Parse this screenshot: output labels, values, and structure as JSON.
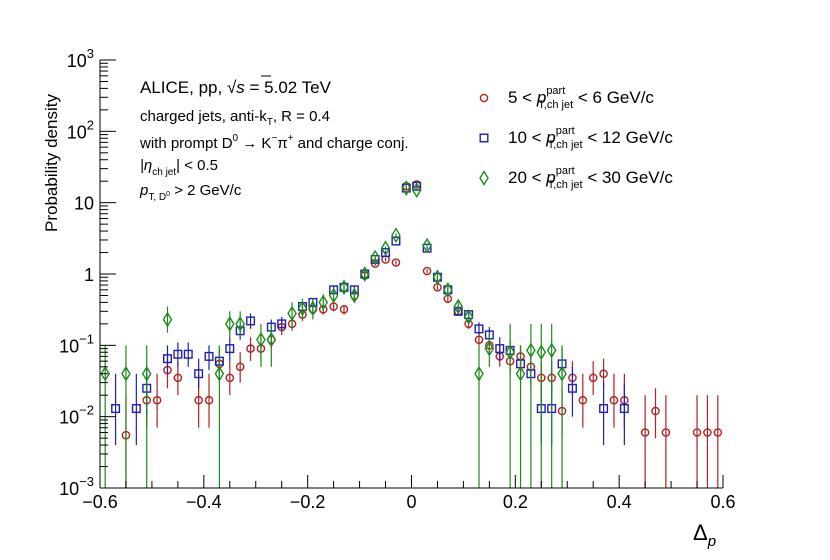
{
  "chart_data": {
    "type": "scatter",
    "title": "",
    "xlabel_main": "Δ",
    "xlabel_sub": "p",
    "ylabel": "Probability density",
    "xlim": [
      -0.6,
      0.6
    ],
    "ylim": [
      0.001,
      1000
    ],
    "yscale": "log",
    "x_ticks": [
      "−0.6",
      "−0.4",
      "−0.2",
      "0",
      "0.2",
      "0.4",
      "0.6"
    ],
    "y_ticks": [
      {
        "base": "10",
        "exp": "−3"
      },
      {
        "base": "10",
        "exp": "−2"
      },
      {
        "base": "10",
        "exp": "−1"
      },
      {
        "base": "1",
        "exp": ""
      },
      {
        "base": "10",
        "exp": ""
      },
      {
        "base": "10",
        "exp": "2"
      },
      {
        "base": "10",
        "exp": "3"
      }
    ],
    "annotations": {
      "experiment": "ALICE, pp,",
      "sqrt": "√s",
      "energy": " = 5.02 TeV",
      "line2": "charged jets, anti-k",
      "line2_sub": "T",
      "line2_tail": ", R = 0.4",
      "line3": "with prompt D",
      "line3_sup": "0",
      "line3_mid": " → K",
      "line3_sup2": "−",
      "line3_pi": "π",
      "line3_sup3": "+",
      "line3_tail": " and charge conj.",
      "line4": "|η",
      "line4_sub": "ch jet",
      "line4_tail": "| < 0.5",
      "line5": "p",
      "line5_sub": "T, D",
      "line5_sub2": "0",
      "line5_tail": " > 2 GeV/c"
    },
    "series": [
      {
        "name": "5 < p_T,ch jet^part < 6 GeV/c",
        "legend": {
          "lo": "5",
          "hi": "  6 GeV/c",
          "p": "p",
          "sup": "part",
          "sub": "T,ch jet"
        },
        "color": "#b22222",
        "marker": "circle",
        "points": [
          {
            "x": -0.55,
            "y": 0.0055,
            "lo": 0.0,
            "hi": 0.02
          },
          {
            "x": -0.51,
            "y": 0.017,
            "lo": 0.007,
            "hi": 0.04
          },
          {
            "x": -0.49,
            "y": 0.017,
            "lo": 0.007,
            "hi": 0.04
          },
          {
            "x": -0.47,
            "y": 0.045,
            "lo": 0.025,
            "hi": 0.08
          },
          {
            "x": -0.45,
            "y": 0.035,
            "lo": 0.02,
            "hi": 0.06
          },
          {
            "x": -0.41,
            "y": 0.017,
            "lo": 0.007,
            "hi": 0.04
          },
          {
            "x": -0.39,
            "y": 0.017,
            "lo": 0.007,
            "hi": 0.04
          },
          {
            "x": -0.37,
            "y": 0.055,
            "lo": 0.035,
            "hi": 0.09
          },
          {
            "x": -0.35,
            "y": 0.035,
            "lo": 0.02,
            "hi": 0.06
          },
          {
            "x": -0.33,
            "y": 0.05,
            "lo": 0.03,
            "hi": 0.08
          },
          {
            "x": -0.31,
            "y": 0.09,
            "lo": 0.06,
            "hi": 0.13
          },
          {
            "x": -0.29,
            "y": 0.09,
            "lo": 0.06,
            "hi": 0.13
          },
          {
            "x": -0.27,
            "y": 0.12,
            "lo": 0.09,
            "hi": 0.16
          },
          {
            "x": -0.25,
            "y": 0.18,
            "lo": 0.14,
            "hi": 0.23
          },
          {
            "x": -0.23,
            "y": 0.2,
            "lo": 0.16,
            "hi": 0.25
          },
          {
            "x": -0.21,
            "y": 0.27,
            "lo": 0.22,
            "hi": 0.32
          },
          {
            "x": -0.19,
            "y": 0.32,
            "lo": 0.27,
            "hi": 0.37
          },
          {
            "x": -0.17,
            "y": 0.32,
            "lo": 0.27,
            "hi": 0.37
          },
          {
            "x": -0.15,
            "y": 0.35,
            "lo": 0.3,
            "hi": 0.4
          },
          {
            "x": -0.13,
            "y": 0.32,
            "lo": 0.27,
            "hi": 0.37
          },
          {
            "x": -0.11,
            "y": 0.5,
            "lo": 0.45,
            "hi": 0.56
          },
          {
            "x": -0.09,
            "y": 0.95,
            "lo": 0.88,
            "hi": 1.02
          },
          {
            "x": -0.07,
            "y": 1.4,
            "lo": 1.3,
            "hi": 1.5
          },
          {
            "x": -0.05,
            "y": 1.6,
            "lo": 1.5,
            "hi": 1.7
          },
          {
            "x": -0.03,
            "y": 1.45,
            "lo": 1.35,
            "hi": 1.55
          },
          {
            "x": -0.01,
            "y": 17,
            "lo": 16.5,
            "hi": 17.5
          },
          {
            "x": 0.01,
            "y": 18,
            "lo": 17.5,
            "hi": 18.5
          },
          {
            "x": 0.03,
            "y": 1.1,
            "lo": 1.02,
            "hi": 1.18
          },
          {
            "x": 0.05,
            "y": 0.65,
            "lo": 0.6,
            "hi": 0.7
          },
          {
            "x": 0.07,
            "y": 0.45,
            "lo": 0.41,
            "hi": 0.5
          },
          {
            "x": 0.09,
            "y": 0.3,
            "lo": 0.26,
            "hi": 0.34
          },
          {
            "x": 0.11,
            "y": 0.2,
            "lo": 0.17,
            "hi": 0.24
          },
          {
            "x": 0.13,
            "y": 0.12,
            "lo": 0.1,
            "hi": 0.15
          },
          {
            "x": 0.15,
            "y": 0.1,
            "lo": 0.08,
            "hi": 0.13
          },
          {
            "x": 0.17,
            "y": 0.07,
            "lo": 0.05,
            "hi": 0.1
          },
          {
            "x": 0.19,
            "y": 0.06,
            "lo": 0.04,
            "hi": 0.09
          },
          {
            "x": 0.21,
            "y": 0.07,
            "lo": 0.05,
            "hi": 0.1
          },
          {
            "x": 0.23,
            "y": 0.05,
            "lo": 0.03,
            "hi": 0.08
          },
          {
            "x": 0.25,
            "y": 0.035,
            "lo": 0.02,
            "hi": 0.06
          },
          {
            "x": 0.27,
            "y": 0.035,
            "lo": 0.02,
            "hi": 0.06
          },
          {
            "x": 0.29,
            "y": 0.012,
            "lo": 0.005,
            "hi": 0.025
          },
          {
            "x": 0.31,
            "y": 0.035,
            "lo": 0.02,
            "hi": 0.06
          },
          {
            "x": 0.33,
            "y": 0.017,
            "lo": 0.007,
            "hi": 0.04
          },
          {
            "x": 0.35,
            "y": 0.035,
            "lo": 0.02,
            "hi": 0.06
          },
          {
            "x": 0.37,
            "y": 0.04,
            "lo": 0.025,
            "hi": 0.065
          },
          {
            "x": 0.39,
            "y": 0.017,
            "lo": 0.007,
            "hi": 0.04
          },
          {
            "x": 0.41,
            "y": 0.017,
            "lo": 0.007,
            "hi": 0.04
          },
          {
            "x": 0.45,
            "y": 0.006,
            "lo": 0.0,
            "hi": 0.02
          },
          {
            "x": 0.47,
            "y": 0.012,
            "lo": 0.005,
            "hi": 0.025
          },
          {
            "x": 0.49,
            "y": 0.006,
            "lo": 0.0,
            "hi": 0.02
          },
          {
            "x": 0.55,
            "y": 0.006,
            "lo": 0.0,
            "hi": 0.02
          },
          {
            "x": 0.57,
            "y": 0.006,
            "lo": 0.0,
            "hi": 0.02
          },
          {
            "x": 0.59,
            "y": 0.006,
            "lo": 0.0,
            "hi": 0.02
          }
        ]
      },
      {
        "name": "10 < p_T,ch jet^part < 12 GeV/c",
        "legend": {
          "lo": "10",
          "hi": "12 GeV/c",
          "p": "p",
          "sup": "part",
          "sub": "T,ch jet"
        },
        "color": "#1f1fb4",
        "marker": "square",
        "points": [
          {
            "x": -0.57,
            "y": 0.013,
            "lo": 0.004,
            "hi": 0.04
          },
          {
            "x": -0.53,
            "y": 0.013,
            "lo": 0.004,
            "hi": 0.04
          },
          {
            "x": -0.51,
            "y": 0.025,
            "lo": 0.01,
            "hi": 0.05
          },
          {
            "x": -0.47,
            "y": 0.065,
            "lo": 0.04,
            "hi": 0.1
          },
          {
            "x": -0.45,
            "y": 0.075,
            "lo": 0.05,
            "hi": 0.11
          },
          {
            "x": -0.43,
            "y": 0.075,
            "lo": 0.05,
            "hi": 0.11
          },
          {
            "x": -0.41,
            "y": 0.04,
            "lo": 0.025,
            "hi": 0.065
          },
          {
            "x": -0.39,
            "y": 0.07,
            "lo": 0.045,
            "hi": 0.1
          },
          {
            "x": -0.37,
            "y": 0.06,
            "lo": 0.04,
            "hi": 0.09
          },
          {
            "x": -0.35,
            "y": 0.09,
            "lo": 0.06,
            "hi": 0.13
          },
          {
            "x": -0.33,
            "y": 0.16,
            "lo": 0.12,
            "hi": 0.21
          },
          {
            "x": -0.31,
            "y": 0.22,
            "lo": 0.17,
            "hi": 0.28
          },
          {
            "x": -0.27,
            "y": 0.18,
            "lo": 0.14,
            "hi": 0.23
          },
          {
            "x": -0.25,
            "y": 0.2,
            "lo": 0.16,
            "hi": 0.25
          },
          {
            "x": -0.21,
            "y": 0.35,
            "lo": 0.3,
            "hi": 0.41
          },
          {
            "x": -0.19,
            "y": 0.4,
            "lo": 0.34,
            "hi": 0.46
          },
          {
            "x": -0.15,
            "y": 0.6,
            "lo": 0.53,
            "hi": 0.68
          },
          {
            "x": -0.13,
            "y": 0.65,
            "lo": 0.58,
            "hi": 0.73
          },
          {
            "x": -0.11,
            "y": 0.6,
            "lo": 0.53,
            "hi": 0.68
          },
          {
            "x": -0.09,
            "y": 1.0,
            "lo": 0.92,
            "hi": 1.08
          },
          {
            "x": -0.07,
            "y": 1.6,
            "lo": 1.5,
            "hi": 1.7
          },
          {
            "x": -0.05,
            "y": 2.0,
            "lo": 1.9,
            "hi": 2.1
          },
          {
            "x": -0.03,
            "y": 2.9,
            "lo": 2.8,
            "hi": 3.0
          },
          {
            "x": -0.01,
            "y": 16,
            "lo": 15.5,
            "hi": 16.5
          },
          {
            "x": 0.01,
            "y": 17,
            "lo": 16.5,
            "hi": 17.5
          },
          {
            "x": 0.03,
            "y": 2.3,
            "lo": 2.2,
            "hi": 2.4
          },
          {
            "x": 0.05,
            "y": 0.9,
            "lo": 0.84,
            "hi": 0.96
          },
          {
            "x": 0.07,
            "y": 0.6,
            "lo": 0.55,
            "hi": 0.65
          },
          {
            "x": 0.09,
            "y": 0.3,
            "lo": 0.26,
            "hi": 0.34
          },
          {
            "x": 0.11,
            "y": 0.27,
            "lo": 0.23,
            "hi": 0.31
          },
          {
            "x": 0.13,
            "y": 0.17,
            "lo": 0.14,
            "hi": 0.21
          },
          {
            "x": 0.15,
            "y": 0.14,
            "lo": 0.11,
            "hi": 0.18
          },
          {
            "x": 0.17,
            "y": 0.09,
            "lo": 0.06,
            "hi": 0.13
          },
          {
            "x": 0.19,
            "y": 0.085,
            "lo": 0.06,
            "hi": 0.12
          },
          {
            "x": 0.21,
            "y": 0.055,
            "lo": 0.035,
            "hi": 0.09
          },
          {
            "x": 0.23,
            "y": 0.04,
            "lo": 0.025,
            "hi": 0.065
          },
          {
            "x": 0.25,
            "y": 0.013,
            "lo": 0.004,
            "hi": 0.03
          },
          {
            "x": 0.27,
            "y": 0.013,
            "lo": 0.004,
            "hi": 0.03
          },
          {
            "x": 0.29,
            "y": 0.055,
            "lo": 0.035,
            "hi": 0.09
          },
          {
            "x": 0.31,
            "y": 0.025,
            "lo": 0.01,
            "hi": 0.05
          },
          {
            "x": 0.37,
            "y": 0.013,
            "lo": 0.004,
            "hi": 0.03
          },
          {
            "x": 0.41,
            "y": 0.013,
            "lo": 0.004,
            "hi": 0.03
          }
        ]
      },
      {
        "name": "20 < p_T,ch jet^part < 30 GeV/c",
        "legend": {
          "lo": "20",
          "hi": "30 GeV/c",
          "p": "p",
          "sup": "part",
          "sub": "T,ch jet"
        },
        "color": "#1a8c1a",
        "marker": "diamond",
        "points": [
          {
            "x": -0.59,
            "y": 0.04,
            "lo": 0.001,
            "hi": 0.1
          },
          {
            "x": -0.55,
            "y": 0.04,
            "lo": 0.001,
            "hi": 0.1
          },
          {
            "x": -0.51,
            "y": 0.04,
            "lo": 0.001,
            "hi": 0.1
          },
          {
            "x": -0.47,
            "y": 0.23,
            "lo": 0.15,
            "hi": 0.35
          },
          {
            "x": -0.37,
            "y": 0.04,
            "lo": 0.001,
            "hi": 0.1
          },
          {
            "x": -0.35,
            "y": 0.2,
            "lo": 0.13,
            "hi": 0.3
          },
          {
            "x": -0.33,
            "y": 0.2,
            "lo": 0.13,
            "hi": 0.3
          },
          {
            "x": -0.29,
            "y": 0.12,
            "lo": 0.05,
            "hi": 0.2
          },
          {
            "x": -0.27,
            "y": 0.12,
            "lo": 0.05,
            "hi": 0.2
          },
          {
            "x": -0.23,
            "y": 0.28,
            "lo": 0.18,
            "hi": 0.4
          },
          {
            "x": -0.21,
            "y": 0.33,
            "lo": 0.23,
            "hi": 0.45
          },
          {
            "x": -0.19,
            "y": 0.33,
            "lo": 0.23,
            "hi": 0.45
          },
          {
            "x": -0.17,
            "y": 0.4,
            "lo": 0.3,
            "hi": 0.52
          },
          {
            "x": -0.15,
            "y": 0.5,
            "lo": 0.4,
            "hi": 0.62
          },
          {
            "x": -0.13,
            "y": 0.65,
            "lo": 0.54,
            "hi": 0.78
          },
          {
            "x": -0.11,
            "y": 0.5,
            "lo": 0.4,
            "hi": 0.62
          },
          {
            "x": -0.09,
            "y": 1.0,
            "lo": 0.88,
            "hi": 1.13
          },
          {
            "x": -0.07,
            "y": 1.7,
            "lo": 1.55,
            "hi": 1.85
          },
          {
            "x": -0.05,
            "y": 2.3,
            "lo": 2.15,
            "hi": 2.45
          },
          {
            "x": -0.03,
            "y": 3.5,
            "lo": 3.3,
            "hi": 3.7
          },
          {
            "x": -0.01,
            "y": 16,
            "lo": 15.5,
            "hi": 16.5
          },
          {
            "x": 0.01,
            "y": 15,
            "lo": 14.5,
            "hi": 15.5
          },
          {
            "x": 0.03,
            "y": 2.5,
            "lo": 2.35,
            "hi": 2.65
          },
          {
            "x": 0.05,
            "y": 0.9,
            "lo": 0.8,
            "hi": 1.0
          },
          {
            "x": 0.07,
            "y": 0.6,
            "lo": 0.52,
            "hi": 0.69
          },
          {
            "x": 0.09,
            "y": 0.35,
            "lo": 0.29,
            "hi": 0.42
          },
          {
            "x": 0.11,
            "y": 0.25,
            "lo": 0.2,
            "hi": 0.31
          },
          {
            "x": 0.13,
            "y": 0.04,
            "lo": 0.001,
            "hi": 0.1
          },
          {
            "x": 0.15,
            "y": 0.09,
            "lo": 0.05,
            "hi": 0.15
          },
          {
            "x": 0.19,
            "y": 0.08,
            "lo": 0.001,
            "hi": 0.2
          },
          {
            "x": 0.21,
            "y": 0.04,
            "lo": 0.001,
            "hi": 0.1
          },
          {
            "x": 0.23,
            "y": 0.085,
            "lo": 0.001,
            "hi": 0.2
          },
          {
            "x": 0.25,
            "y": 0.08,
            "lo": 0.001,
            "hi": 0.2
          },
          {
            "x": 0.27,
            "y": 0.085,
            "lo": 0.001,
            "hi": 0.2
          },
          {
            "x": 0.29,
            "y": 0.04,
            "lo": 0.001,
            "hi": 0.1
          }
        ]
      }
    ]
  }
}
